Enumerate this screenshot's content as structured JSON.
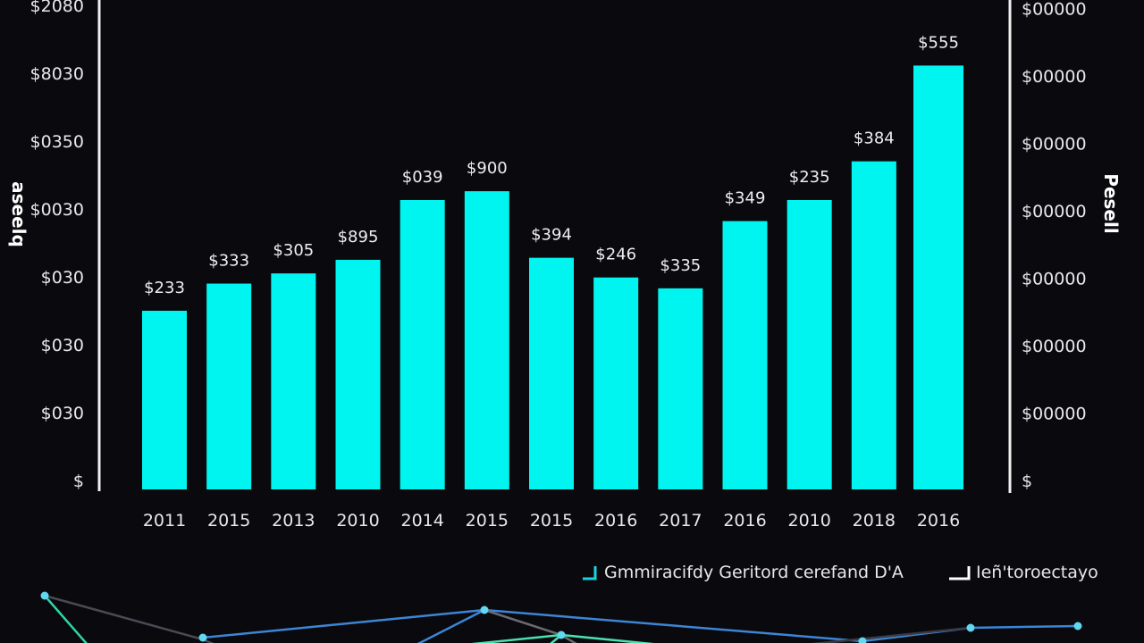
{
  "chart_data": {
    "type": "bar",
    "categories": [
      "2011",
      "2015",
      "2013",
      "2010",
      "2014",
      "2015",
      "2015",
      "2016",
      "2017",
      "2016",
      "2010",
      "2018",
      "2016"
    ],
    "values": [
      2.63,
      3.03,
      3.18,
      3.38,
      4.26,
      4.39,
      3.41,
      3.12,
      2.96,
      3.95,
      4.26,
      4.83,
      6.24
    ],
    "data_labels": [
      "$233",
      "$333",
      "$305",
      "$895",
      "$039",
      "$900",
      "$394",
      "$246",
      "$335",
      "$349",
      "$235",
      "$384",
      "$555"
    ],
    "ylim": [
      0,
      7.1
    ],
    "left_ticks": [
      "$",
      "$030",
      "$030",
      "$030",
      "$0030",
      "$0350",
      "$8030",
      "$2080"
    ],
    "right_ticks": [
      "$",
      "$00000",
      "$00000",
      "$00000",
      "$00000",
      "$00000",
      "$00000",
      "$00000"
    ],
    "ylabel_left": "aseelq",
    "ylabel_right": "Pesell",
    "legend": [
      {
        "label": "Gmmiracifdy Geritord cerefand D'A",
        "color": "#19d3e0"
      },
      {
        "label": "Ieñ'toroectayo",
        "color": "#ffffff"
      }
    ],
    "legend_placement": "bottom-right",
    "grid": false,
    "bar_color": "#00f5f0",
    "background": "#0a090d"
  }
}
